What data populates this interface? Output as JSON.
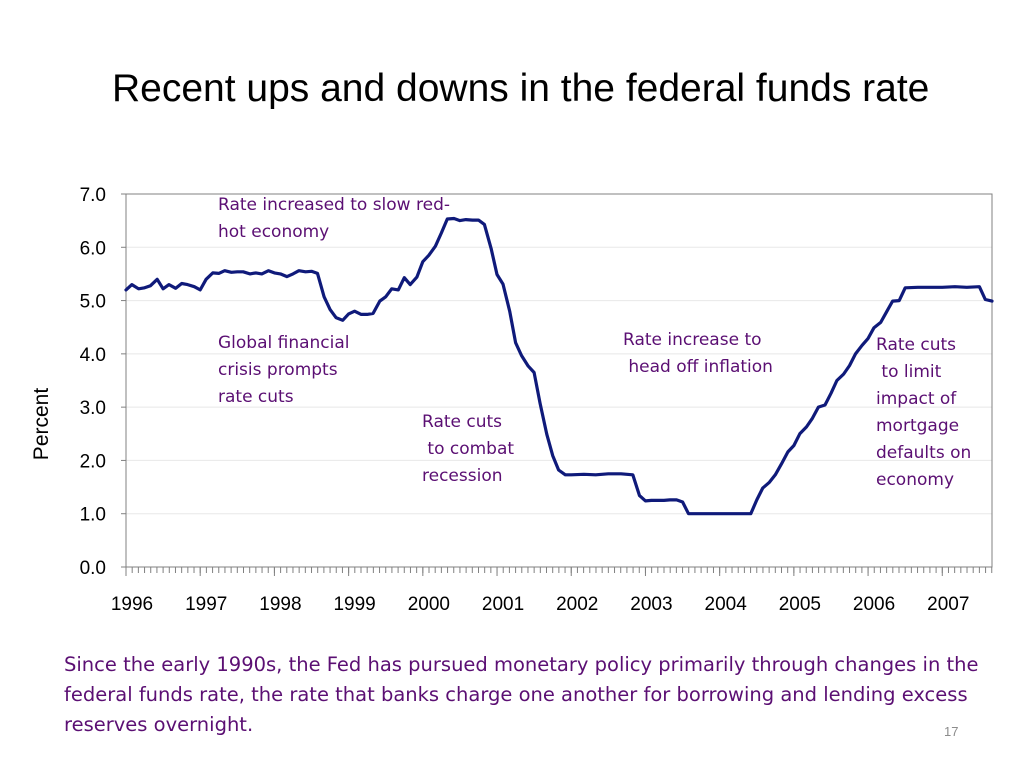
{
  "slide": {
    "title": "Recent ups and downs in the federal funds rate",
    "caption": "Since the early 1990s, the Fed has pursued monetary policy primarily through changes in the federal funds rate, the rate that banks charge one another for borrowing and lending excess reserves overnight.",
    "page_number": "17"
  },
  "colors": {
    "line": "#0f1a7a",
    "annotation_text": "#5b0f73",
    "axis": "#808080",
    "gridline": "#e8e8e8",
    "tick_text": "#000000"
  },
  "chart_data": {
    "type": "line",
    "title": "",
    "xlabel": "",
    "ylabel": "Percent",
    "xlim": [
      1996.0,
      2007.67
    ],
    "ylim": [
      0,
      7
    ],
    "grid": true,
    "legend": "none",
    "x_tick_labels": [
      "1996",
      "1997",
      "1998",
      "1999",
      "2000",
      "2001",
      "2002",
      "2003",
      "2004",
      "2005",
      "2006",
      "2007"
    ],
    "y_tick_labels": [
      "0.0",
      "1.0",
      "2.0",
      "3.0",
      "4.0",
      "5.0",
      "6.0",
      "7.0"
    ],
    "series": [
      {
        "x": [
          1996.0,
          1996.08,
          1996.17,
          1996.25,
          1996.33,
          1996.42,
          1996.5,
          1996.58,
          1996.67,
          1996.75,
          1996.83,
          1996.92,
          1997.0,
          1997.08,
          1997.17,
          1997.25,
          1997.33,
          1997.42,
          1997.5,
          1997.58,
          1997.67,
          1997.75,
          1997.83,
          1997.92,
          1998.0,
          1998.08,
          1998.17,
          1998.25,
          1998.33,
          1998.42,
          1998.5,
          1998.58,
          1998.67,
          1998.75,
          1998.83,
          1998.92,
          1999.0,
          1999.08,
          1999.17,
          1999.25,
          1999.33,
          1999.42,
          1999.5,
          1999.58,
          1999.67,
          1999.75,
          1999.83,
          1999.92,
          2000.0,
          2000.08,
          2000.17,
          2000.25,
          2000.33,
          2000.42,
          2000.5,
          2000.58,
          2000.67,
          2000.75,
          2000.83,
          2000.92,
          2001.0,
          2001.08,
          2001.17,
          2001.25,
          2001.33,
          2001.42,
          2001.5,
          2001.58,
          2001.67,
          2001.75,
          2001.83,
          2001.92,
          2002.0,
          2002.17,
          2002.33,
          2002.5,
          2002.67,
          2002.83,
          2002.92,
          2003.0,
          2003.08,
          2003.17,
          2003.25,
          2003.33,
          2003.42,
          2003.5,
          2003.58,
          2003.67,
          2003.83,
          2004.0,
          2004.17,
          2004.33,
          2004.42,
          2004.5,
          2004.58,
          2004.67,
          2004.75,
          2004.83,
          2004.92,
          2005.0,
          2005.08,
          2005.17,
          2005.25,
          2005.33,
          2005.42,
          2005.5,
          2005.58,
          2005.67,
          2005.75,
          2005.83,
          2005.92,
          2006.0,
          2006.08,
          2006.17,
          2006.25,
          2006.33,
          2006.42,
          2006.5,
          2006.67,
          2006.83,
          2007.0,
          2007.17,
          2007.33,
          2007.5,
          2007.58,
          2007.67
        ],
        "y": [
          5.2,
          5.3,
          5.22,
          5.24,
          5.28,
          5.4,
          5.22,
          5.3,
          5.23,
          5.32,
          5.3,
          5.26,
          5.2,
          5.4,
          5.52,
          5.51,
          5.56,
          5.53,
          5.54,
          5.54,
          5.5,
          5.52,
          5.5,
          5.56,
          5.52,
          5.5,
          5.45,
          5.5,
          5.56,
          5.54,
          5.55,
          5.51,
          5.07,
          4.83,
          4.68,
          4.63,
          4.75,
          4.8,
          4.74,
          4.74,
          4.76,
          4.99,
          5.07,
          5.22,
          5.2,
          5.43,
          5.3,
          5.44,
          5.73,
          5.85,
          6.02,
          6.27,
          6.53,
          6.54,
          6.5,
          6.52,
          6.51,
          6.51,
          6.43,
          5.98,
          5.49,
          5.31,
          4.8,
          4.21,
          3.97,
          3.77,
          3.65,
          3.07,
          2.49,
          2.09,
          1.82,
          1.73,
          1.73,
          1.74,
          1.73,
          1.75,
          1.75,
          1.73,
          1.34,
          1.24,
          1.25,
          1.25,
          1.25,
          1.26,
          1.26,
          1.22,
          1.0,
          1.0,
          1.0,
          1.0,
          1.0,
          1.0,
          1.0,
          1.26,
          1.48,
          1.59,
          1.73,
          1.93,
          2.16,
          2.28,
          2.5,
          2.63,
          2.79,
          3.0,
          3.04,
          3.26,
          3.5,
          3.62,
          3.78,
          4.0,
          4.16,
          4.29,
          4.49,
          4.59,
          4.79,
          4.99,
          5.0,
          5.24,
          5.25,
          5.25,
          5.25,
          5.26,
          5.25,
          5.26,
          5.02,
          4.99
        ]
      }
    ],
    "annotations": [
      "Rate increased to slow red-\nhot economy",
      "Global financial\ncrisis prompts\nrate cuts",
      "Rate cuts\n to combat\nrecession",
      "Rate increase to\n head off inflation",
      "Rate cuts\n to limit\nimpact of\nmortgage\ndefaults on\neconomy"
    ]
  }
}
